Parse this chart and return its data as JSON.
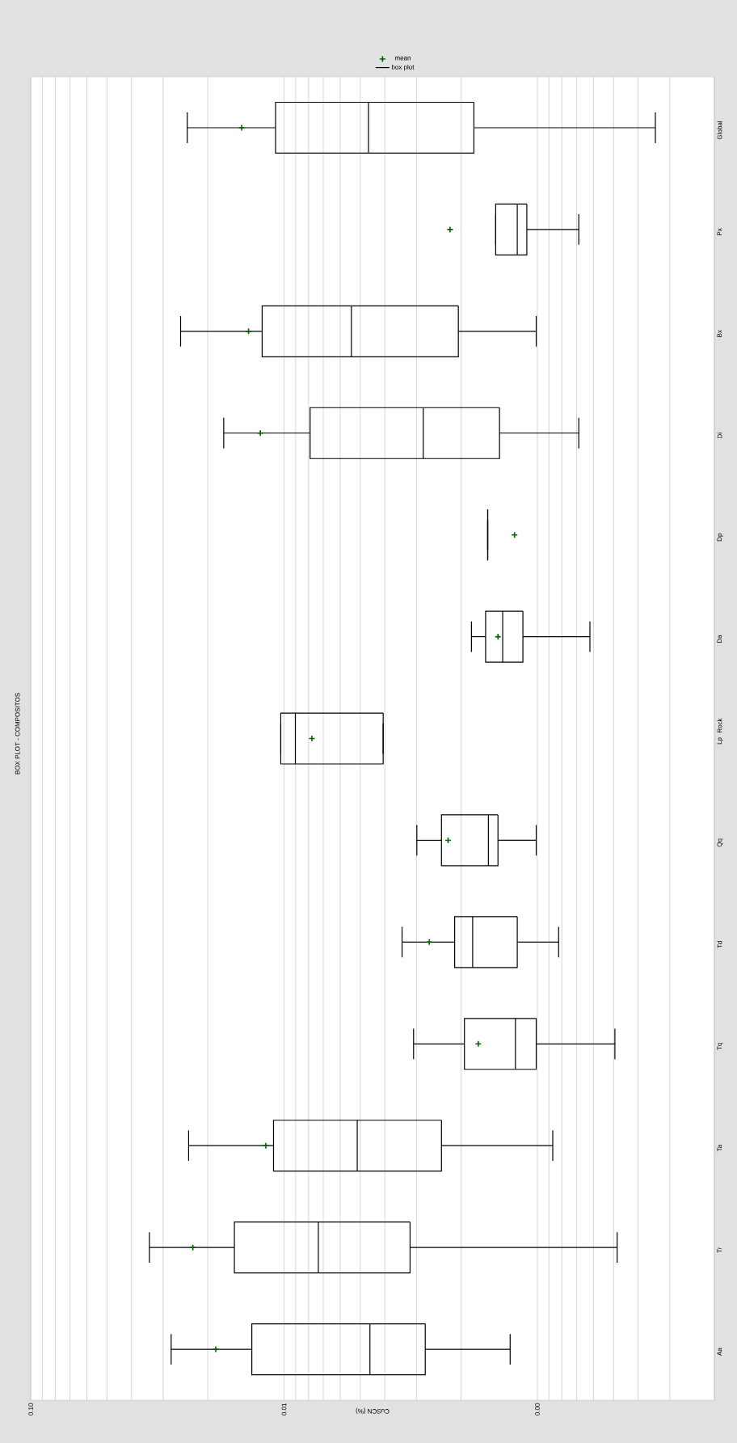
{
  "chart_data": {
    "type": "box",
    "orientation": "horizontal",
    "title": "BOX PLOT - COMPOSITOS",
    "xlabel": "CuSCN (%)",
    "ylabel": "Rock",
    "categories": [
      "Global",
      "Px",
      "Bx",
      "Di",
      "Dp",
      "Da",
      "Lp",
      "Qq",
      "Td",
      "Tq",
      "Ta",
      "Tr",
      "Aa"
    ],
    "series": [
      {
        "type": "scatter",
        "name": "mean",
        "color": "#006400",
        "marker": "cross",
        "x": [
          "Global",
          "Px",
          "Bx",
          "Di",
          "Dp",
          "Da",
          "Lp",
          "Qq",
          "Td",
          "Tq",
          "Ta",
          "Tr",
          "Aa"
        ],
        "values": [
          0.0147,
          0.00221,
          0.0138,
          0.0124,
          0.00123,
          0.00143,
          0.00776,
          0.00225,
          0.00267,
          0.00171,
          0.0118,
          0.0229,
          0.0186
        ]
      },
      {
        "name": "box plot",
        "color": "#000000",
        "boxes": [
          {
            "low": 0.000342,
            "q1": 0.00178,
            "median": 0.00464,
            "q3": 0.0108,
            "high": 0.0241
          },
          {
            "low": 0.000686,
            "q1": 0.0011,
            "median": 0.0012,
            "q3": 0.00146,
            "high": 0.00146
          },
          {
            "low": 0.00101,
            "q1": 0.00205,
            "median": 0.00542,
            "q3": 0.0122,
            "high": 0.0256
          },
          {
            "low": 0.000686,
            "q1": 0.00141,
            "median": 0.00282,
            "q3": 0.00789,
            "high": 0.0173
          },
          {
            "low": 0.00157,
            "q1": 0.00157,
            "median": 0.00157,
            "q3": 0.00157,
            "high": 0.00157
          },
          {
            "low": 0.00062,
            "q1": 0.00114,
            "median": 0.00137,
            "q3": 0.0016,
            "high": 0.00182
          },
          {
            "low": 0.00406,
            "q1": 0.00406,
            "median": 0.00902,
            "q3": 0.0103,
            "high": 0.0103
          },
          {
            "low": 0.00101,
            "q1": 0.00143,
            "median": 0.00156,
            "q3": 0.00239,
            "high": 0.00299
          },
          {
            "low": 0.000824,
            "q1": 0.0012,
            "median": 0.0018,
            "q3": 0.00212,
            "high": 0.00342
          },
          {
            "low": 0.000494,
            "q1": 0.00101,
            "median": 0.00122,
            "q3": 0.00194,
            "high": 0.00308
          },
          {
            "low": 0.000869,
            "q1": 0.00239,
            "median": 0.00514,
            "q3": 0.011,
            "high": 0.0238
          },
          {
            "low": 0.000484,
            "q1": 0.00318,
            "median": 0.00732,
            "q3": 0.0157,
            "high": 0.034
          },
          {
            "low": 0.00128,
            "q1": 0.00277,
            "median": 0.00458,
            "q3": 0.0134,
            "high": 0.0279
          }
        ]
      }
    ],
    "log": "x",
    "xlim": [
      0.1,
      0.0002
    ],
    "xticks": [
      {
        "value": 0.1,
        "label": "0.10"
      },
      0.01,
      {
        "value": 0.001,
        "label": "0.00"
      }
    ],
    "grid": "x",
    "legend": "top"
  }
}
